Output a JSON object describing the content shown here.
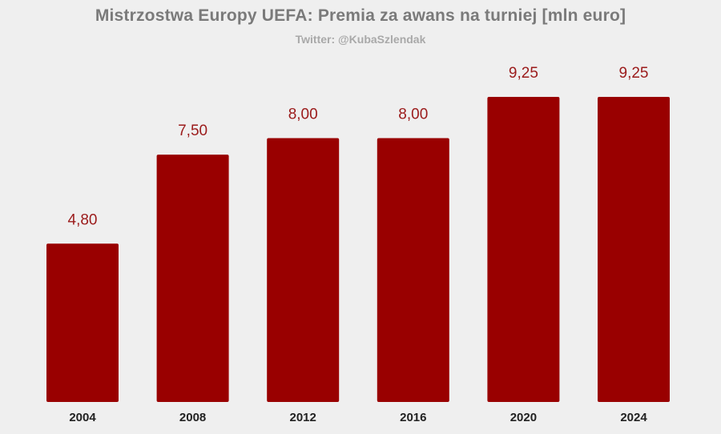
{
  "chart_data": {
    "type": "bar",
    "title": "Mistrzostwa Europy UEFA: Premia za awans na turniej [mln euro]",
    "subtitle": "Twitter: @KubaSzlendak",
    "categories": [
      "2004",
      "2008",
      "2012",
      "2016",
      "2020",
      "2024"
    ],
    "values": [
      4.8,
      7.5,
      8.0,
      8.0,
      9.25,
      9.25
    ],
    "data_labels": [
      "4,80",
      "7,50",
      "8,00",
      "8,00",
      "9,25",
      "9,25"
    ],
    "ylim": [
      0,
      9.25
    ],
    "xlabel": "",
    "ylabel": "",
    "grid": false,
    "legend": "none",
    "bar_color": "#990000",
    "label_color": "#9b1b1b"
  }
}
